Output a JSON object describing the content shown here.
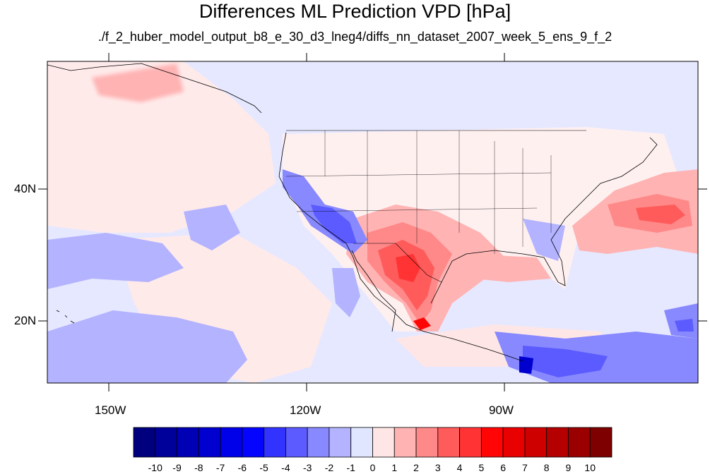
{
  "title": "Differences ML Prediction VPD [hPa]",
  "subtitle": "./f_2_huber_model_output_b8_e_30_d3_lneg4/diffs_nn_dataset_2007_week_5_ens_9_f_2",
  "axes": {
    "lat_labels": [
      "40N",
      "20N"
    ],
    "lon_labels": [
      "150W",
      "120W",
      "90W"
    ]
  },
  "colorbar": {
    "labels": [
      "-10",
      "-9",
      "-8",
      "-7",
      "-6",
      "-5",
      "-4",
      "-3",
      "-2",
      "-1",
      "0",
      "1",
      "2",
      "3",
      "4",
      "5",
      "6",
      "7",
      "8",
      "9",
      "10"
    ],
    "colors": [
      "#00007f",
      "#00009a",
      "#0000b4",
      "#0000cf",
      "#0000e9",
      "#0505ff",
      "#3333ff",
      "#5b5bff",
      "#8888ff",
      "#b3b3ff",
      "#e0e6ff",
      "#ffe6e6",
      "#ffb3b3",
      "#ff8888",
      "#ff5b5b",
      "#ff3333",
      "#ff0505",
      "#e90000",
      "#cf0000",
      "#b40000",
      "#9a0000",
      "#7f0000"
    ]
  },
  "map_data": {
    "lon_range": [
      -160,
      -62
    ],
    "lat_range": [
      10,
      59
    ],
    "background_color": "#e6e8ff",
    "anomalies": [
      {
        "desc": "southwest us negative",
        "color": "#5b5bff"
      },
      {
        "desc": "mexico texas positive",
        "color": "#ff3333"
      },
      {
        "desc": "atlantic positive",
        "color": "#ff5b5b"
      },
      {
        "desc": "central america negative",
        "color": "#0000cf"
      }
    ]
  }
}
